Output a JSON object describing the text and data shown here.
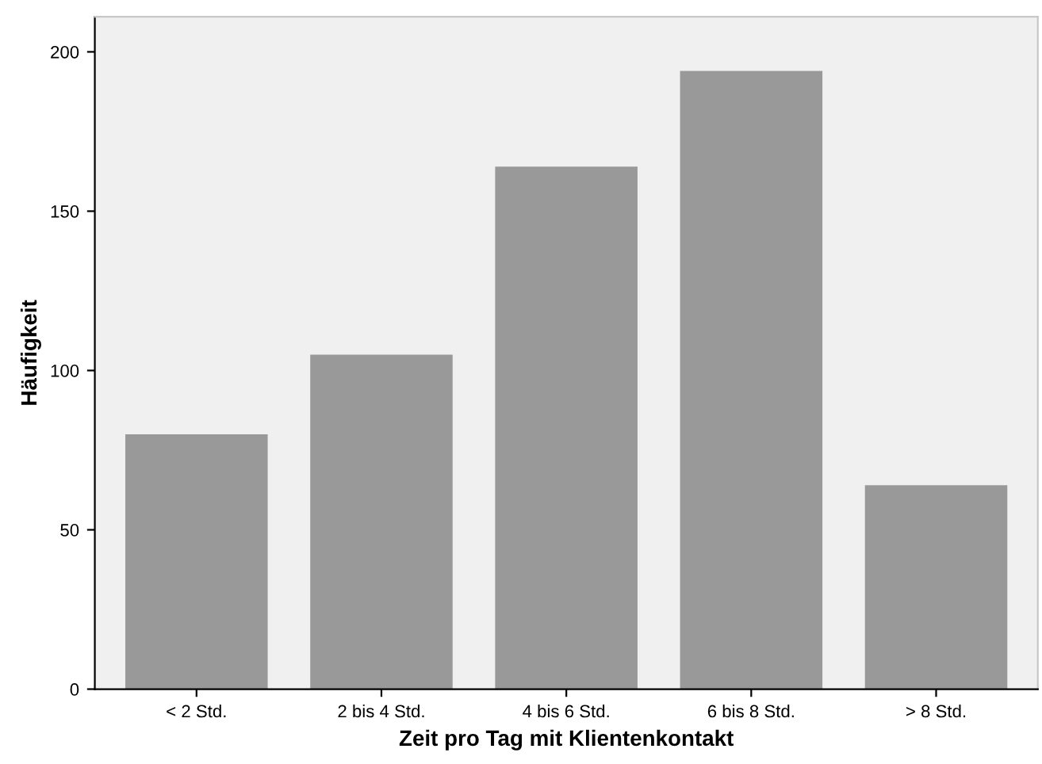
{
  "chart_data": {
    "type": "bar",
    "xlabel": "Zeit pro Tag mit Klientenkontakt",
    "ylabel": "Häufigkeit",
    "categories": [
      "< 2 Std.",
      "2 bis 4 Std.",
      "4 bis 6 Std.",
      "6 bis 8 Std.",
      "> 8 Std."
    ],
    "values": [
      80,
      105,
      164,
      194,
      64
    ],
    "color": "#999999",
    "ylim": [
      0,
      211
    ],
    "yticks": [
      0,
      50,
      100,
      150,
      200
    ],
    "grid": false
  }
}
